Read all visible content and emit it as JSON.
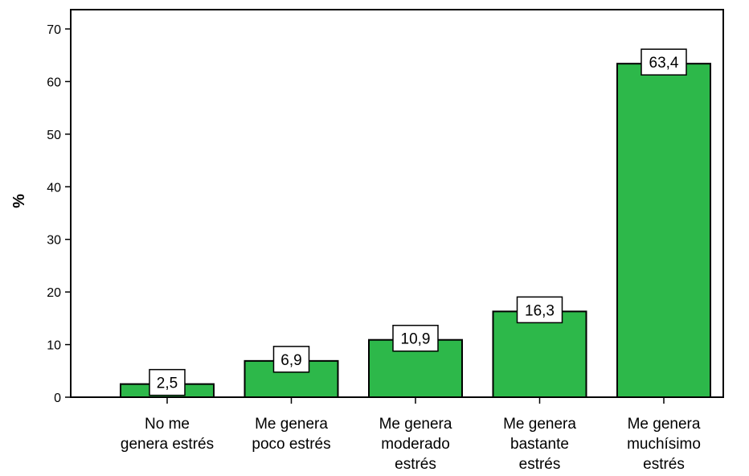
{
  "chart_data": {
    "type": "bar",
    "categories": [
      [
        "No me",
        "genera estrés"
      ],
      [
        "Me genera",
        "poco estrés"
      ],
      [
        "Me genera",
        "moderado",
        "estrés"
      ],
      [
        "Me genera",
        "bastante",
        "estrés"
      ],
      [
        "Me genera",
        "muchísimo",
        "estrés"
      ]
    ],
    "values": [
      2.5,
      6.9,
      10.9,
      16.3,
      63.4
    ],
    "data_labels": [
      "2,5",
      "6,9",
      "10,9",
      "16,3",
      "63,4"
    ],
    "ylabel": "%",
    "xlabel": "",
    "ylim": [
      0,
      70
    ],
    "yticks": [
      0,
      10,
      20,
      30,
      40,
      50,
      60,
      70
    ],
    "bar_color": "#2db84a",
    "grid": false
  }
}
